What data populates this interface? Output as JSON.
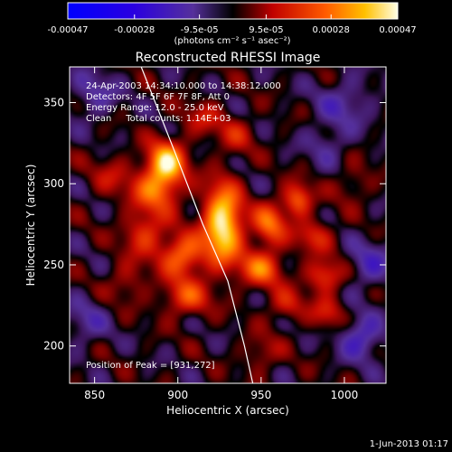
{
  "chart_data": {
    "type": "heatmap",
    "title": "Reconstructed RHESSI Image",
    "xlabel": "Heliocentric X (arcsec)",
    "ylabel": "Heliocentric Y (arcsec)",
    "xlim": [
      835,
      1025
    ],
    "ylim": [
      177,
      372
    ],
    "x_ticks": [
      850,
      900,
      950,
      1000
    ],
    "y_ticks": [
      200,
      250,
      300,
      350
    ],
    "colorbar": {
      "min": -0.00047,
      "max": 0.00047,
      "tick_labels": [
        "-0.00047",
        "-0.00028",
        "-9.5e-05",
        "9.5e-05",
        "0.00028",
        "0.00047"
      ],
      "tick_values": [
        -0.00047,
        -0.00028,
        -9.5e-05,
        9.5e-05,
        0.00028,
        0.00047
      ],
      "unit_label": "(photons cm⁻² s⁻¹ asec⁻²)"
    },
    "annotations": [
      "24-Apr-2003 14:34:10.000 to 14:38:12.000",
      "Detectors: 4F 5F 6F 7F 8F, Att 0",
      "Energy Range: 12.0 - 25.0 keV",
      "Clean     Total counts: 1.14E+03"
    ],
    "peak": {
      "x": 931,
      "y": 272,
      "label": "Position of Peak = [931,272]"
    },
    "footer_date": "1-Jun-2013 01:17",
    "sources": [
      {
        "x": 927,
        "y": 275,
        "amp": 1.0,
        "sx": 8,
        "sy": 17
      },
      {
        "x": 893,
        "y": 313,
        "amp": 0.85,
        "sx": 8,
        "sy": 9
      },
      {
        "x": 887,
        "y": 296,
        "amp": 0.55,
        "sx": 10,
        "sy": 9
      },
      {
        "x": 903,
        "y": 256,
        "amp": 0.6,
        "sx": 9,
        "sy": 9
      },
      {
        "x": 955,
        "y": 275,
        "amp": 0.55,
        "sx": 7,
        "sy": 9
      },
      {
        "x": 950,
        "y": 248,
        "amp": 0.55,
        "sx": 9,
        "sy": 8
      },
      {
        "x": 972,
        "y": 290,
        "amp": 0.55,
        "sx": 6,
        "sy": 7
      },
      {
        "x": 988,
        "y": 243,
        "amp": 0.45,
        "sx": 8,
        "sy": 7
      },
      {
        "x": 905,
        "y": 230,
        "amp": 0.45,
        "sx": 10,
        "sy": 8
      },
      {
        "x": 982,
        "y": 268,
        "amp": 0.35,
        "sx": 8,
        "sy": 7
      },
      {
        "x": 990,
        "y": 220,
        "amp": 0.3,
        "sx": 7,
        "sy": 7
      },
      {
        "x": 880,
        "y": 270,
        "amp": 0.4,
        "sx": 9,
        "sy": 10
      },
      {
        "x": 915,
        "y": 340,
        "amp": 0.25,
        "sx": 9,
        "sy": 8
      },
      {
        "x": 965,
        "y": 225,
        "amp": 0.3,
        "sx": 8,
        "sy": 7
      },
      {
        "x": 860,
        "y": 305,
        "amp": 0.22,
        "sx": 9,
        "sy": 9
      },
      {
        "x": 935,
        "y": 330,
        "amp": 0.25,
        "sx": 8,
        "sy": 8
      },
      {
        "x": 870,
        "y": 240,
        "amp": 0.22,
        "sx": 9,
        "sy": 9
      },
      {
        "x": 950,
        "y": 195,
        "amp": 0.22,
        "sx": 8,
        "sy": 8
      },
      {
        "x": 1005,
        "y": 300,
        "amp": 0.18,
        "sx": 8,
        "sy": 8
      },
      {
        "x": 1010,
        "y": 205,
        "amp": -0.4,
        "sx": 9,
        "sy": 9
      },
      {
        "x": 1015,
        "y": 250,
        "amp": -0.3,
        "sx": 9,
        "sy": 10
      },
      {
        "x": 850,
        "y": 355,
        "amp": -0.25,
        "sx": 10,
        "sy": 10
      },
      {
        "x": 1000,
        "y": 350,
        "amp": -0.25,
        "sx": 12,
        "sy": 10
      },
      {
        "x": 845,
        "y": 215,
        "amp": -0.22,
        "sx": 9,
        "sy": 10
      },
      {
        "x": 990,
        "y": 325,
        "amp": -0.2,
        "sx": 9,
        "sy": 9
      }
    ],
    "limb_curve": [
      [
        878,
        372
      ],
      [
        898,
        320
      ],
      [
        915,
        275
      ],
      [
        930,
        240
      ],
      [
        940,
        200
      ],
      [
        945,
        177
      ]
    ]
  }
}
